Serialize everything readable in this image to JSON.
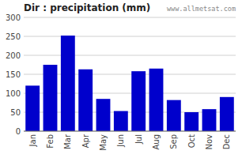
{
  "chart_data": {
    "type": "bar",
    "title": "Dir : precipitation (mm)",
    "categories": [
      "Jan",
      "Feb",
      "Mar",
      "Apr",
      "May",
      "Jun",
      "Jul",
      "Aug",
      "Sep",
      "Oct",
      "Nov",
      "Dec"
    ],
    "values": [
      120,
      175,
      252,
      163,
      85,
      53,
      158,
      165,
      82,
      50,
      58,
      90
    ],
    "color": "#0000CC",
    "ylim": [
      0,
      300
    ],
    "yticks": [
      0,
      50,
      100,
      150,
      200,
      250,
      300
    ],
    "grid": true,
    "annotations": [
      "www.allmetsat.com"
    ]
  }
}
